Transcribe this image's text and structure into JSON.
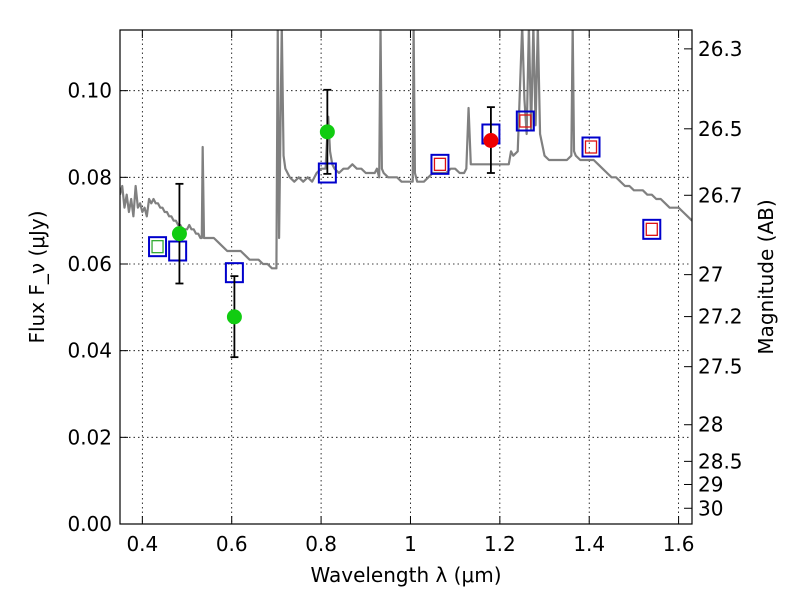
{
  "chart_data": {
    "type": "scatter",
    "title": "",
    "xlabel": "Wavelength λ (μm)",
    "ylabel": "Flux F_ν (μJy)",
    "y2label": "Magnitude (AB)",
    "xlim": [
      0.35,
      1.63
    ],
    "ylim": [
      0.0,
      0.114
    ],
    "grid": true,
    "x_ticks": [
      {
        "value": 0.4,
        "label": "0.4"
      },
      {
        "value": 0.6,
        "label": "0.6"
      },
      {
        "value": 0.8,
        "label": "0.8"
      },
      {
        "value": 1.0,
        "label": "1"
      },
      {
        "value": 1.2,
        "label": "1.2"
      },
      {
        "value": 1.4,
        "label": "1.4"
      },
      {
        "value": 1.6,
        "label": "1.6"
      }
    ],
    "y_ticks": [
      {
        "value": 0.0,
        "label": "0.00"
      },
      {
        "value": 0.02,
        "label": "0.02"
      },
      {
        "value": 0.04,
        "label": "0.04"
      },
      {
        "value": 0.06,
        "label": "0.06"
      },
      {
        "value": 0.08,
        "label": "0.08"
      },
      {
        "value": 0.1,
        "label": "0.10"
      }
    ],
    "mag_ticks": [
      {
        "value": 26.3,
        "label": "26.3"
      },
      {
        "value": 26.5,
        "label": "26.5"
      },
      {
        "value": 26.7,
        "label": "26.7"
      },
      {
        "value": 27.0,
        "label": "27"
      },
      {
        "value": 27.2,
        "label": "27.2"
      },
      {
        "value": 27.5,
        "label": "27.5"
      },
      {
        "value": 28.0,
        "label": "28"
      },
      {
        "value": 28.5,
        "label": "28.5"
      },
      {
        "value": 29.0,
        "label": "29"
      },
      {
        "value": 30.0,
        "label": "30"
      }
    ],
    "series": [
      {
        "name": "model spectrum",
        "kind": "line",
        "color": "#808080",
        "points": [
          [
            0.35,
            0.076
          ],
          [
            0.355,
            0.078
          ],
          [
            0.36,
            0.073
          ],
          [
            0.365,
            0.076
          ],
          [
            0.37,
            0.072
          ],
          [
            0.375,
            0.075
          ],
          [
            0.38,
            0.071
          ],
          [
            0.385,
            0.078
          ],
          [
            0.39,
            0.073
          ],
          [
            0.395,
            0.074
          ],
          [
            0.4,
            0.072
          ],
          [
            0.405,
            0.073
          ],
          [
            0.41,
            0.071
          ],
          [
            0.415,
            0.075
          ],
          [
            0.42,
            0.074
          ],
          [
            0.425,
            0.075
          ],
          [
            0.43,
            0.074
          ],
          [
            0.435,
            0.074
          ],
          [
            0.44,
            0.073
          ],
          [
            0.445,
            0.073
          ],
          [
            0.45,
            0.072
          ],
          [
            0.455,
            0.072
          ],
          [
            0.46,
            0.071
          ],
          [
            0.465,
            0.071
          ],
          [
            0.47,
            0.07
          ],
          [
            0.475,
            0.07
          ],
          [
            0.48,
            0.069
          ],
          [
            0.485,
            0.069
          ],
          [
            0.49,
            0.068
          ],
          [
            0.495,
            0.068
          ],
          [
            0.5,
            0.068
          ],
          [
            0.505,
            0.069
          ],
          [
            0.51,
            0.068
          ],
          [
            0.515,
            0.068
          ],
          [
            0.52,
            0.067
          ],
          [
            0.525,
            0.067
          ],
          [
            0.53,
            0.066
          ],
          [
            0.533,
            0.066
          ],
          [
            0.535,
            0.087
          ],
          [
            0.538,
            0.066
          ],
          [
            0.54,
            0.066
          ],
          [
            0.55,
            0.066
          ],
          [
            0.56,
            0.066
          ],
          [
            0.57,
            0.065
          ],
          [
            0.58,
            0.064
          ],
          [
            0.59,
            0.063
          ],
          [
            0.6,
            0.063
          ],
          [
            0.61,
            0.063
          ],
          [
            0.62,
            0.063
          ],
          [
            0.63,
            0.062
          ],
          [
            0.64,
            0.061
          ],
          [
            0.65,
            0.061
          ],
          [
            0.66,
            0.061
          ],
          [
            0.67,
            0.06
          ],
          [
            0.68,
            0.06
          ],
          [
            0.69,
            0.059
          ],
          [
            0.7,
            0.059
          ],
          [
            0.703,
            0.115
          ],
          [
            0.706,
            0.066
          ],
          [
            0.712,
            0.115
          ],
          [
            0.716,
            0.085
          ],
          [
            0.72,
            0.082
          ],
          [
            0.73,
            0.08
          ],
          [
            0.74,
            0.079
          ],
          [
            0.75,
            0.08
          ],
          [
            0.76,
            0.079
          ],
          [
            0.77,
            0.08
          ],
          [
            0.78,
            0.079
          ],
          [
            0.79,
            0.081
          ],
          [
            0.8,
            0.082
          ],
          [
            0.81,
            0.082
          ],
          [
            0.816,
            0.094
          ],
          [
            0.82,
            0.086
          ],
          [
            0.825,
            0.083
          ],
          [
            0.83,
            0.082
          ],
          [
            0.84,
            0.081
          ],
          [
            0.85,
            0.082
          ],
          [
            0.86,
            0.082
          ],
          [
            0.87,
            0.083
          ],
          [
            0.88,
            0.082
          ],
          [
            0.89,
            0.082
          ],
          [
            0.9,
            0.081
          ],
          [
            0.91,
            0.081
          ],
          [
            0.92,
            0.081
          ],
          [
            0.925,
            0.082
          ],
          [
            0.93,
            0.08
          ],
          [
            0.933,
            0.115
          ],
          [
            0.936,
            0.082
          ],
          [
            0.94,
            0.081
          ],
          [
            0.95,
            0.08
          ],
          [
            0.96,
            0.08
          ],
          [
            0.97,
            0.08
          ],
          [
            0.98,
            0.079
          ],
          [
            0.99,
            0.079
          ],
          [
            1.0,
            0.079
          ],
          [
            1.005,
            0.079
          ],
          [
            1.007,
            0.115
          ],
          [
            1.01,
            0.081
          ],
          [
            1.015,
            0.079
          ],
          [
            1.02,
            0.079
          ],
          [
            1.03,
            0.079
          ],
          [
            1.04,
            0.08
          ],
          [
            1.05,
            0.081
          ],
          [
            1.06,
            0.081
          ],
          [
            1.07,
            0.081
          ],
          [
            1.08,
            0.081
          ],
          [
            1.09,
            0.082
          ],
          [
            1.1,
            0.082
          ],
          [
            1.11,
            0.081
          ],
          [
            1.12,
            0.081
          ],
          [
            1.125,
            0.082
          ],
          [
            1.13,
            0.096
          ],
          [
            1.135,
            0.083
          ],
          [
            1.14,
            0.083
          ],
          [
            1.15,
            0.083
          ],
          [
            1.16,
            0.083
          ],
          [
            1.17,
            0.083
          ],
          [
            1.18,
            0.083
          ],
          [
            1.19,
            0.083
          ],
          [
            1.2,
            0.083
          ],
          [
            1.21,
            0.083
          ],
          [
            1.22,
            0.083
          ],
          [
            1.225,
            0.086
          ],
          [
            1.23,
            0.085
          ],
          [
            1.24,
            0.086
          ],
          [
            1.25,
            0.115
          ],
          [
            1.255,
            0.098
          ],
          [
            1.26,
            0.09
          ],
          [
            1.265,
            0.115
          ],
          [
            1.27,
            0.091
          ],
          [
            1.275,
            0.115
          ],
          [
            1.28,
            0.092
          ],
          [
            1.285,
            0.115
          ],
          [
            1.29,
            0.09
          ],
          [
            1.3,
            0.085
          ],
          [
            1.31,
            0.084
          ],
          [
            1.32,
            0.084
          ],
          [
            1.33,
            0.084
          ],
          [
            1.34,
            0.084
          ],
          [
            1.35,
            0.084
          ],
          [
            1.36,
            0.085
          ],
          [
            1.363,
            0.115
          ],
          [
            1.366,
            0.086
          ],
          [
            1.37,
            0.085
          ],
          [
            1.38,
            0.084
          ],
          [
            1.39,
            0.084
          ],
          [
            1.4,
            0.084
          ],
          [
            1.41,
            0.084
          ],
          [
            1.42,
            0.083
          ],
          [
            1.43,
            0.082
          ],
          [
            1.44,
            0.081
          ],
          [
            1.45,
            0.08
          ],
          [
            1.46,
            0.08
          ],
          [
            1.47,
            0.079
          ],
          [
            1.48,
            0.078
          ],
          [
            1.49,
            0.078
          ],
          [
            1.5,
            0.077
          ],
          [
            1.51,
            0.077
          ],
          [
            1.52,
            0.077
          ],
          [
            1.53,
            0.076
          ],
          [
            1.54,
            0.076
          ],
          [
            1.55,
            0.075
          ],
          [
            1.56,
            0.075
          ],
          [
            1.57,
            0.074
          ],
          [
            1.58,
            0.073
          ],
          [
            1.59,
            0.073
          ],
          [
            1.6,
            0.073
          ],
          [
            1.61,
            0.072
          ],
          [
            1.62,
            0.071
          ],
          [
            1.63,
            0.07
          ]
        ]
      },
      {
        "name": "model photometry (blue squares)",
        "kind": "square",
        "color": "#0000cc",
        "points": [
          [
            0.434,
            0.064
          ],
          [
            0.479,
            0.063
          ],
          [
            0.606,
            0.058
          ],
          [
            0.814,
            0.081
          ],
          [
            1.066,
            0.083
          ],
          [
            1.18,
            0.09
          ],
          [
            1.257,
            0.093
          ],
          [
            1.404,
            0.087
          ],
          [
            1.54,
            0.068
          ]
        ]
      },
      {
        "name": "inner squares (red)",
        "kind": "square-small",
        "color": "#dd1111",
        "points": [
          [
            1.066,
            0.083
          ],
          [
            1.257,
            0.093
          ],
          [
            1.404,
            0.087
          ],
          [
            1.54,
            0.068
          ]
        ]
      },
      {
        "name": "inner square (green)",
        "kind": "square-small",
        "color": "#33aa33",
        "points": [
          [
            0.434,
            0.064
          ]
        ]
      },
      {
        "name": "observed photometry (green)",
        "kind": "circle",
        "color": "#11cc11",
        "points": [
          {
            "x": 0.483,
            "y": 0.067,
            "lo": 0.0555,
            "hi": 0.0785
          },
          {
            "x": 0.606,
            "y": 0.0478,
            "lo": 0.0385,
            "hi": 0.0572
          },
          {
            "x": 0.814,
            "y": 0.0905,
            "lo": 0.0808,
            "hi": 0.1002
          }
        ]
      },
      {
        "name": "observed photometry (red)",
        "kind": "circle",
        "color": "#ee0000",
        "points": [
          {
            "x": 1.18,
            "y": 0.0885,
            "lo": 0.081,
            "hi": 0.0962
          }
        ]
      }
    ]
  }
}
